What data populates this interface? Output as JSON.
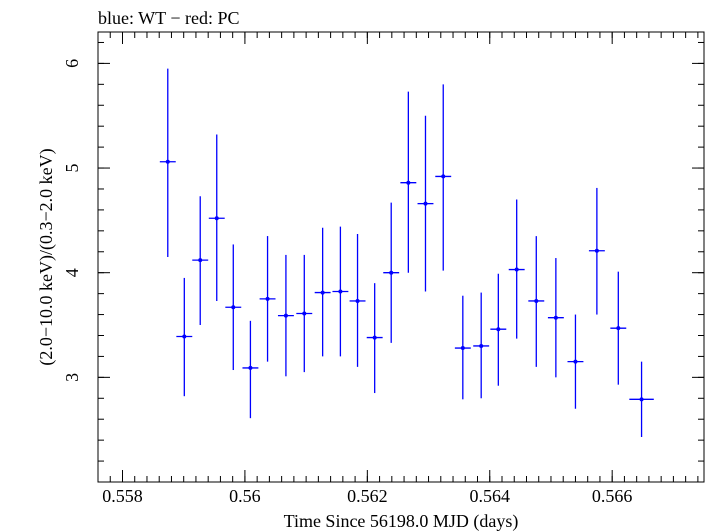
{
  "header": {
    "text": "blue: WT − red: PC"
  },
  "colors": {
    "wt": "#0000ff",
    "pc": "#ff0000",
    "axis": "#000000"
  },
  "chart_data": {
    "type": "scatter",
    "title": "blue: WT − red: PC",
    "xlabel": "Time Since 56198.0 MJD (days)",
    "ylabel": "(2.0−10.0 keV)/(0.3−2.0 keV)",
    "xlim": [
      0.5576,
      0.5675
    ],
    "ylim": [
      2.0,
      6.3
    ],
    "xticks": [
      0.558,
      0.56,
      0.562,
      0.564,
      0.566
    ],
    "xtick_labels": [
      "0.558",
      "0.56",
      "0.562",
      "0.564",
      "0.566"
    ],
    "yticks": [
      3,
      4,
      5,
      6
    ],
    "ytick_labels": [
      "3",
      "4",
      "5",
      "6"
    ],
    "grid": false,
    "series": [
      {
        "color": "#0000ff",
        "points": [
          {
            "x": 0.55874,
            "xerr": 0.00013,
            "y": 5.06,
            "ylo": 4.15,
            "yhi": 5.95
          },
          {
            "x": 0.55901,
            "xerr": 0.00013,
            "y": 3.39,
            "ylo": 2.82,
            "yhi": 3.95
          },
          {
            "x": 0.55927,
            "xerr": 0.00013,
            "y": 4.12,
            "ylo": 3.5,
            "yhi": 4.73
          },
          {
            "x": 0.55954,
            "xerr": 0.00013,
            "y": 4.52,
            "ylo": 3.73,
            "yhi": 5.32
          },
          {
            "x": 0.55981,
            "xerr": 0.00013,
            "y": 3.67,
            "ylo": 3.07,
            "yhi": 4.27
          },
          {
            "x": 0.56009,
            "xerr": 0.00013,
            "y": 3.09,
            "ylo": 2.61,
            "yhi": 3.54
          },
          {
            "x": 0.56037,
            "xerr": 0.00013,
            "y": 3.75,
            "ylo": 3.15,
            "yhi": 4.35
          },
          {
            "x": 0.56067,
            "xerr": 0.00013,
            "y": 3.59,
            "ylo": 3.01,
            "yhi": 4.17
          },
          {
            "x": 0.56097,
            "xerr": 0.00013,
            "y": 3.61,
            "ylo": 3.05,
            "yhi": 4.17
          },
          {
            "x": 0.56127,
            "xerr": 0.00013,
            "y": 3.81,
            "ylo": 3.2,
            "yhi": 4.43
          },
          {
            "x": 0.56156,
            "xerr": 0.00013,
            "y": 3.82,
            "ylo": 3.2,
            "yhi": 4.44
          },
          {
            "x": 0.56184,
            "xerr": 0.00013,
            "y": 3.73,
            "ylo": 3.1,
            "yhi": 4.37
          },
          {
            "x": 0.56212,
            "xerr": 0.00013,
            "y": 3.38,
            "ylo": 2.85,
            "yhi": 3.9
          },
          {
            "x": 0.56239,
            "xerr": 0.00013,
            "y": 4.0,
            "ylo": 3.33,
            "yhi": 4.67
          },
          {
            "x": 0.56267,
            "xerr": 0.00013,
            "y": 4.86,
            "ylo": 4.0,
            "yhi": 5.73
          },
          {
            "x": 0.56295,
            "xerr": 0.00013,
            "y": 4.66,
            "ylo": 3.82,
            "yhi": 5.5
          },
          {
            "x": 0.56324,
            "xerr": 0.00013,
            "y": 4.92,
            "ylo": 4.02,
            "yhi": 5.8
          },
          {
            "x": 0.56356,
            "xerr": 0.00013,
            "y": 3.28,
            "ylo": 2.79,
            "yhi": 3.78
          },
          {
            "x": 0.56386,
            "xerr": 0.00013,
            "y": 3.3,
            "ylo": 2.8,
            "yhi": 3.81
          },
          {
            "x": 0.56414,
            "xerr": 0.00013,
            "y": 3.46,
            "ylo": 2.92,
            "yhi": 3.99
          },
          {
            "x": 0.56444,
            "xerr": 0.00013,
            "y": 4.03,
            "ylo": 3.37,
            "yhi": 4.7
          },
          {
            "x": 0.56476,
            "xerr": 0.00013,
            "y": 3.73,
            "ylo": 3.1,
            "yhi": 4.35
          },
          {
            "x": 0.56508,
            "xerr": 0.00013,
            "y": 3.57,
            "ylo": 3.0,
            "yhi": 4.14
          },
          {
            "x": 0.5654,
            "xerr": 0.00013,
            "y": 3.15,
            "ylo": 2.7,
            "yhi": 3.6
          },
          {
            "x": 0.56575,
            "xerr": 0.00013,
            "y": 4.21,
            "ylo": 3.6,
            "yhi": 4.81
          },
          {
            "x": 0.5661,
            "xerr": 0.00013,
            "y": 3.47,
            "ylo": 2.93,
            "yhi": 4.01
          },
          {
            "x": 0.56648,
            "xerr": 0.0002,
            "y": 2.79,
            "ylo": 2.43,
            "yhi": 3.15
          }
        ]
      }
    ]
  }
}
